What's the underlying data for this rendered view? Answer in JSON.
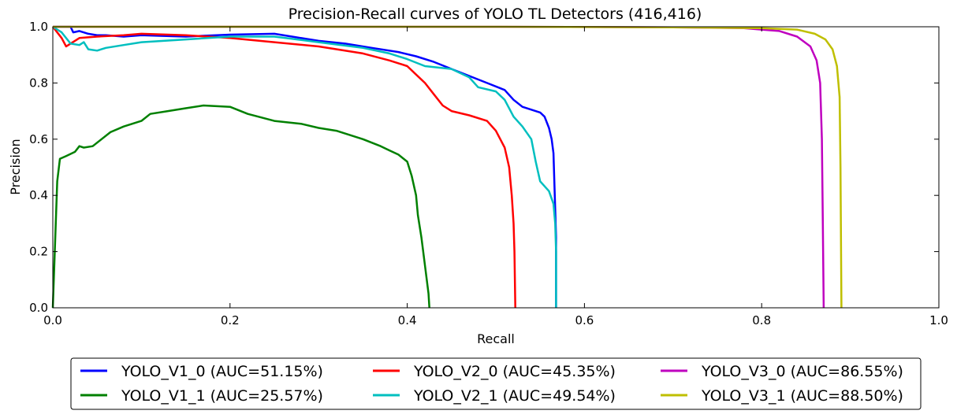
{
  "chart_data": {
    "type": "line",
    "title": "Precision-Recall curves of YOLO TL Detectors (416,416)",
    "xlabel": "Recall",
    "ylabel": "Precision",
    "xlim": [
      0.0,
      1.0
    ],
    "ylim": [
      0.0,
      1.0
    ],
    "xticks": [
      "0.0",
      "0.2",
      "0.4",
      "0.6",
      "0.8",
      "1.0"
    ],
    "yticks": [
      "0.0",
      "0.2",
      "0.4",
      "0.6",
      "0.8",
      "1.0"
    ],
    "grid": false,
    "legend_position": "bottom-center",
    "series": [
      {
        "name": "YOLO_V1_0 (AUC=51.15%)",
        "color": "#0000ff",
        "points": [
          [
            0.0,
            1.0
          ],
          [
            0.02,
            1.0
          ],
          [
            0.023,
            0.98
          ],
          [
            0.03,
            0.985
          ],
          [
            0.04,
            0.975
          ],
          [
            0.05,
            0.97
          ],
          [
            0.06,
            0.97
          ],
          [
            0.08,
            0.965
          ],
          [
            0.1,
            0.97
          ],
          [
            0.15,
            0.965
          ],
          [
            0.2,
            0.972
          ],
          [
            0.25,
            0.975
          ],
          [
            0.27,
            0.965
          ],
          [
            0.3,
            0.95
          ],
          [
            0.33,
            0.94
          ],
          [
            0.36,
            0.925
          ],
          [
            0.39,
            0.91
          ],
          [
            0.41,
            0.895
          ],
          [
            0.43,
            0.875
          ],
          [
            0.45,
            0.85
          ],
          [
            0.47,
            0.825
          ],
          [
            0.49,
            0.8
          ],
          [
            0.51,
            0.775
          ],
          [
            0.52,
            0.74
          ],
          [
            0.53,
            0.715
          ],
          [
            0.54,
            0.705
          ],
          [
            0.55,
            0.695
          ],
          [
            0.555,
            0.68
          ],
          [
            0.56,
            0.64
          ],
          [
            0.563,
            0.6
          ],
          [
            0.565,
            0.55
          ],
          [
            0.566,
            0.45
          ],
          [
            0.567,
            0.35
          ],
          [
            0.568,
            0.25
          ],
          [
            0.568,
            0.0
          ]
        ]
      },
      {
        "name": "YOLO_V1_1 (AUC=25.57%)",
        "color": "#008000",
        "points": [
          [
            0.0,
            0.0
          ],
          [
            0.005,
            0.45
          ],
          [
            0.008,
            0.53
          ],
          [
            0.015,
            0.54
          ],
          [
            0.025,
            0.555
          ],
          [
            0.03,
            0.575
          ],
          [
            0.035,
            0.57
          ],
          [
            0.045,
            0.575
          ],
          [
            0.055,
            0.6
          ],
          [
            0.065,
            0.625
          ],
          [
            0.08,
            0.645
          ],
          [
            0.1,
            0.665
          ],
          [
            0.11,
            0.69
          ],
          [
            0.13,
            0.7
          ],
          [
            0.15,
            0.71
          ],
          [
            0.17,
            0.72
          ],
          [
            0.2,
            0.715
          ],
          [
            0.22,
            0.69
          ],
          [
            0.25,
            0.665
          ],
          [
            0.28,
            0.655
          ],
          [
            0.3,
            0.64
          ],
          [
            0.32,
            0.63
          ],
          [
            0.35,
            0.6
          ],
          [
            0.37,
            0.575
          ],
          [
            0.38,
            0.56
          ],
          [
            0.39,
            0.545
          ],
          [
            0.4,
            0.52
          ],
          [
            0.405,
            0.47
          ],
          [
            0.41,
            0.4
          ],
          [
            0.412,
            0.33
          ],
          [
            0.416,
            0.25
          ],
          [
            0.42,
            0.15
          ],
          [
            0.424,
            0.05
          ],
          [
            0.425,
            0.0
          ]
        ]
      },
      {
        "name": "YOLO_V2_0 (AUC=45.35%)",
        "color": "#ff0000",
        "points": [
          [
            0.0,
            1.0
          ],
          [
            0.01,
            0.96
          ],
          [
            0.015,
            0.93
          ],
          [
            0.02,
            0.94
          ],
          [
            0.03,
            0.96
          ],
          [
            0.05,
            0.965
          ],
          [
            0.08,
            0.97
          ],
          [
            0.1,
            0.975
          ],
          [
            0.15,
            0.97
          ],
          [
            0.2,
            0.96
          ],
          [
            0.25,
            0.945
          ],
          [
            0.3,
            0.93
          ],
          [
            0.35,
            0.905
          ],
          [
            0.38,
            0.88
          ],
          [
            0.4,
            0.86
          ],
          [
            0.41,
            0.83
          ],
          [
            0.42,
            0.8
          ],
          [
            0.43,
            0.76
          ],
          [
            0.44,
            0.72
          ],
          [
            0.45,
            0.7
          ],
          [
            0.47,
            0.685
          ],
          [
            0.49,
            0.665
          ],
          [
            0.5,
            0.63
          ],
          [
            0.51,
            0.57
          ],
          [
            0.515,
            0.5
          ],
          [
            0.518,
            0.4
          ],
          [
            0.52,
            0.3
          ],
          [
            0.521,
            0.2
          ],
          [
            0.522,
            0.0
          ]
        ]
      },
      {
        "name": "YOLO_V2_1 (AUC=49.54%)",
        "color": "#00bfbf",
        "points": [
          [
            0.0,
            1.0
          ],
          [
            0.01,
            0.98
          ],
          [
            0.02,
            0.94
          ],
          [
            0.03,
            0.935
          ],
          [
            0.035,
            0.945
          ],
          [
            0.04,
            0.92
          ],
          [
            0.05,
            0.915
          ],
          [
            0.06,
            0.925
          ],
          [
            0.08,
            0.935
          ],
          [
            0.1,
            0.945
          ],
          [
            0.15,
            0.955
          ],
          [
            0.2,
            0.965
          ],
          [
            0.25,
            0.965
          ],
          [
            0.3,
            0.945
          ],
          [
            0.35,
            0.925
          ],
          [
            0.38,
            0.905
          ],
          [
            0.4,
            0.885
          ],
          [
            0.42,
            0.86
          ],
          [
            0.45,
            0.85
          ],
          [
            0.47,
            0.82
          ],
          [
            0.48,
            0.785
          ],
          [
            0.5,
            0.77
          ],
          [
            0.51,
            0.74
          ],
          [
            0.52,
            0.68
          ],
          [
            0.53,
            0.645
          ],
          [
            0.54,
            0.6
          ],
          [
            0.545,
            0.52
          ],
          [
            0.55,
            0.45
          ],
          [
            0.56,
            0.415
          ],
          [
            0.565,
            0.37
          ],
          [
            0.567,
            0.3
          ],
          [
            0.568,
            0.2
          ],
          [
            0.568,
            0.0
          ]
        ]
      },
      {
        "name": "YOLO_V3_0 (AUC=86.55%)",
        "color": "#bf00bf",
        "points": [
          [
            0.0,
            1.0
          ],
          [
            0.5,
            1.0
          ],
          [
            0.7,
            0.998
          ],
          [
            0.78,
            0.995
          ],
          [
            0.8,
            0.99
          ],
          [
            0.82,
            0.985
          ],
          [
            0.84,
            0.965
          ],
          [
            0.855,
            0.93
          ],
          [
            0.862,
            0.88
          ],
          [
            0.866,
            0.8
          ],
          [
            0.868,
            0.6
          ],
          [
            0.869,
            0.3
          ],
          [
            0.87,
            0.0
          ]
        ]
      },
      {
        "name": "YOLO_V3_1 (AUC=88.50%)",
        "color": "#bfbf00",
        "points": [
          [
            0.0,
            1.0
          ],
          [
            0.5,
            1.0
          ],
          [
            0.7,
            0.998
          ],
          [
            0.8,
            0.995
          ],
          [
            0.84,
            0.99
          ],
          [
            0.86,
            0.975
          ],
          [
            0.872,
            0.955
          ],
          [
            0.88,
            0.92
          ],
          [
            0.885,
            0.86
          ],
          [
            0.888,
            0.75
          ],
          [
            0.889,
            0.5
          ],
          [
            0.89,
            0.0
          ]
        ]
      }
    ]
  }
}
